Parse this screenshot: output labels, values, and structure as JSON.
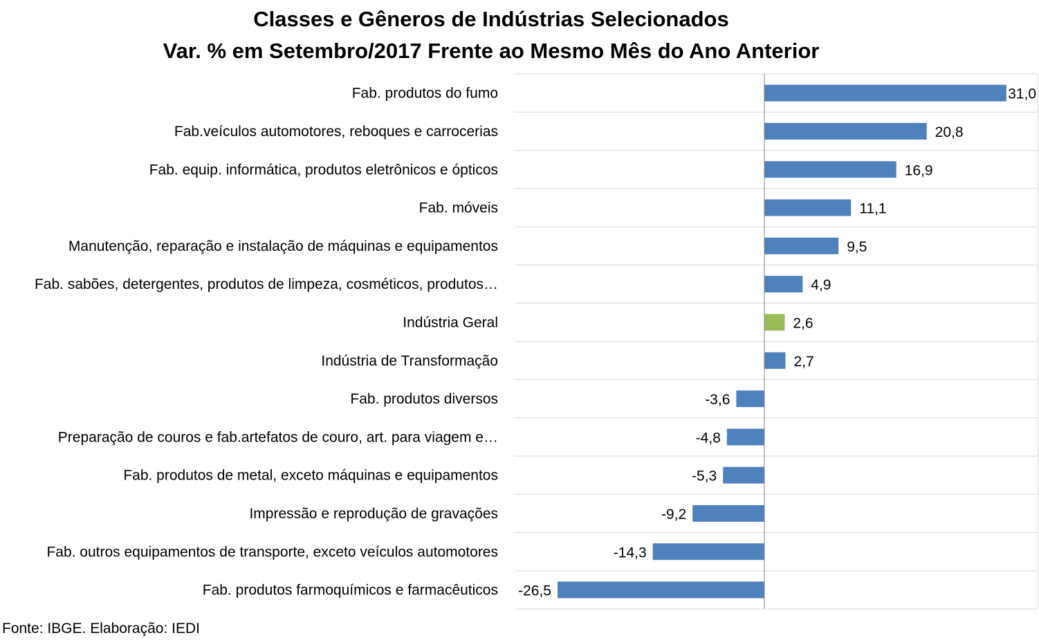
{
  "chart_data": {
    "type": "bar",
    "orientation": "horizontal",
    "title": [
      "Classes e Gêneros de Indústrias Selecionados",
      "Var. % em Setembro/2017 Frente ao Mesmo Mês do Ano Anterior"
    ],
    "categories": [
      "Fab. produtos do fumo",
      "Fab.veículos automotores, reboques e carrocerias",
      "Fab. equip. informática, produtos eletrônicos e ópticos",
      "Fab. móveis",
      "Manutenção, reparação e instalação de máquinas e equipamentos",
      "Fab. sabões, detergentes, produtos de limpeza, cosméticos, produtos…",
      "Indústria Geral",
      "Indústria de Transformação",
      "Fab. produtos diversos",
      "Preparação de couros e fab.artefatos de couro, art. para viagem e…",
      "Fab. produtos de metal, exceto máquinas e equipamentos",
      "Impressão e reprodução de gravações",
      "Fab. outros equipamentos de transporte, exceto veículos automotores",
      "Fab. produtos farmoquímicos e farmacêuticos"
    ],
    "values": [
      31.0,
      20.8,
      16.9,
      11.1,
      9.5,
      4.9,
      2.6,
      2.7,
      -3.6,
      -4.8,
      -5.3,
      -9.2,
      -14.3,
      -26.5
    ],
    "value_labels": [
      "31,0",
      "20,8",
      "16,9",
      "11,1",
      "9,5",
      "4,9",
      "2,6",
      "2,7",
      "-3,6",
      "-4,8",
      "-5,3",
      "-9,2",
      "-14,3",
      "-26,5"
    ],
    "highlight_category": "Indústria Geral",
    "colors": {
      "bar": "#4F81BD",
      "highlight": "#9BBB59",
      "gridline": "#D9D9D9",
      "axis": "#808080"
    },
    "xlim": [
      -26.5,
      35.0
    ],
    "grid": true,
    "legend": "none"
  },
  "footer": {
    "source": "Fonte: IBGE. Elaboração: IEDI"
  }
}
